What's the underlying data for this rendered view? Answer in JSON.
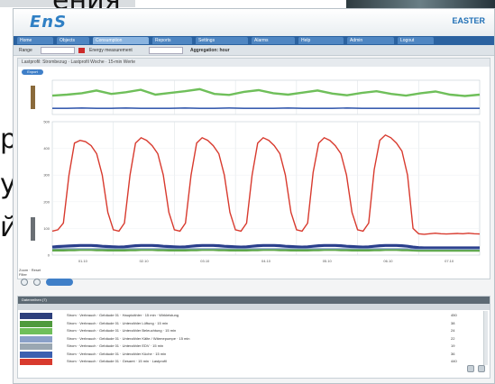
{
  "slide": {
    "fragment_top": "ения",
    "fragment_ra": "ра",
    "fragment_u": "у",
    "fragment_yi": "йс"
  },
  "app": {
    "logo": "EnS",
    "brand": "EASTER",
    "nav_tabs": [
      "Home",
      "Objects",
      "Consumption",
      "Reports",
      "Settings",
      "Alarms",
      "Help",
      "Admin",
      "Logout"
    ],
    "active_tab": 2,
    "toolbar": {
      "left_label": "Range",
      "middle_label": "Energy measurement",
      "right_label": "Aggregation: hour"
    },
    "panel_title": "Lastprofil: Strombezug · Lastprofil Woche · 15-min Werte",
    "pill_label": "Export"
  },
  "chart_data": [
    {
      "type": "line",
      "title": "",
      "xlabel": "",
      "ylabel": "",
      "ylim": [
        0,
        100
      ],
      "series": [
        {
          "color": "#6fbf5a",
          "values": [
            55,
            58,
            62,
            70,
            60,
            65,
            72,
            58,
            63,
            68,
            74,
            60,
            57,
            66,
            71,
            62,
            58,
            64,
            70,
            61,
            56,
            63,
            68,
            60,
            55,
            62,
            67,
            58,
            54,
            58
          ]
        },
        {
          "color": "#3b5fb0",
          "values": [
            18,
            18,
            19,
            18,
            18,
            19,
            18,
            18,
            18,
            19,
            18,
            18,
            19,
            18,
            18,
            18,
            19,
            18,
            18,
            18,
            19,
            18,
            18,
            18,
            18,
            18,
            18,
            18,
            18,
            18
          ]
        }
      ]
    },
    {
      "type": "line",
      "title": "",
      "xlabel": "",
      "ylabel": "",
      "ylim": [
        0,
        500
      ],
      "x_ticks": [
        "01.10",
        "02.10",
        "03.10",
        "04.10",
        "05.10",
        "06.10",
        "07.10"
      ],
      "series": [
        {
          "color": "#d83a2e",
          "values": [
            90,
            95,
            120,
            300,
            420,
            430,
            425,
            410,
            380,
            300,
            160,
            95,
            90,
            120,
            300,
            420,
            440,
            430,
            410,
            380,
            300,
            160,
            95,
            90,
            120,
            300,
            420,
            440,
            430,
            410,
            380,
            300,
            160,
            95,
            90,
            120,
            300,
            420,
            440,
            430,
            410,
            380,
            300,
            160,
            95,
            90,
            120,
            310,
            420,
            440,
            430,
            410,
            380,
            300,
            160,
            95,
            90,
            120,
            320,
            430,
            450,
            440,
            420,
            390,
            300,
            100,
            80,
            78,
            80,
            82,
            80,
            79,
            80,
            81,
            80,
            82,
            80,
            79
          ]
        },
        {
          "color": "#2a3f8c",
          "values": [
            30,
            32,
            33,
            34,
            35,
            36,
            36,
            36,
            35,
            33,
            32,
            31,
            30,
            31,
            33,
            35,
            36,
            36,
            36,
            35,
            33,
            32,
            31,
            30,
            31,
            33,
            35,
            36,
            36,
            36,
            35,
            33,
            32,
            31,
            30,
            31,
            33,
            35,
            36,
            36,
            36,
            35,
            33,
            32,
            31,
            30,
            31,
            33,
            35,
            36,
            36,
            36,
            35,
            33,
            32,
            31,
            30,
            31,
            33,
            35,
            36,
            36,
            36,
            35,
            33,
            30,
            28,
            27,
            27,
            27,
            27,
            27,
            27,
            27,
            27,
            27,
            27,
            27
          ]
        },
        {
          "color": "#5fa84a",
          "values": [
            18,
            18,
            18,
            19,
            19,
            20,
            20,
            20,
            19,
            19,
            18,
            18,
            18,
            18,
            19,
            19,
            20,
            20,
            20,
            19,
            19,
            18,
            18,
            18,
            18,
            19,
            19,
            20,
            20,
            20,
            19,
            19,
            18,
            18,
            18,
            18,
            19,
            19,
            20,
            20,
            20,
            19,
            19,
            18,
            18,
            18,
            18,
            19,
            19,
            20,
            20,
            20,
            19,
            19,
            18,
            18,
            18,
            18,
            19,
            19,
            20,
            20,
            20,
            19,
            19,
            18,
            17,
            17,
            17,
            17,
            17,
            17,
            17,
            17,
            17,
            17,
            17,
            17
          ]
        },
        {
          "color": "#8aa0c8",
          "values": [
            24,
            24,
            24,
            24,
            24,
            24,
            24,
            24,
            24,
            24,
            24,
            24,
            24,
            24,
            24,
            24,
            24,
            24,
            24,
            24,
            24,
            24,
            24,
            24,
            24,
            24,
            24,
            24,
            24,
            24,
            24,
            24,
            24,
            24,
            24,
            24,
            24,
            24,
            24,
            24,
            24,
            24,
            24,
            24,
            24,
            24,
            24,
            24,
            24,
            24,
            24,
            24,
            24,
            24,
            24,
            24,
            24,
            24,
            24,
            24,
            24,
            24,
            24,
            24,
            24,
            22,
            22,
            22,
            22,
            22,
            22,
            22,
            22,
            22,
            22,
            22,
            22,
            22
          ]
        }
      ]
    }
  ],
  "chart_footer": {
    "line1": "Zoom · Reset",
    "line2": "Filter"
  },
  "legend_panel": {
    "header": "Datenreihen (7)",
    "rows": [
      {
        "color": "#2d3f7c",
        "label": "Strom · Verbrauch · Gebäude 01 · Hauptzähler · 15 min · Wirkleistung",
        "value": "450"
      },
      {
        "color": "#4f9a3c",
        "label": "Strom · Verbrauch · Gebäude 01 · Unterzähler Lüftung · 15 min",
        "value": "38"
      },
      {
        "color": "#6fbf5a",
        "label": "Strom · Verbrauch · Gebäude 01 · Unterzähler Beleuchtung · 15 min",
        "value": "24"
      },
      {
        "color": "#8aa0c8",
        "label": "Strom · Verbrauch · Gebäude 01 · Unterzähler Kälte / Wärmepumpe · 15 min",
        "value": "22"
      },
      {
        "color": "#9aa7b2",
        "label": "Strom · Verbrauch · Gebäude 01 · Unterzähler EDV · 15 min",
        "value": "19"
      },
      {
        "color": "#3b5fb0",
        "label": "Strom · Verbrauch · Gebäude 01 · Unterzähler Küche · 15 min",
        "value": "36"
      },
      {
        "color": "#d83a2e",
        "label": "Strom · Verbrauch · Gebäude 01 · Gesamt · 15 min · Lastprofil",
        "value": "440"
      }
    ]
  }
}
